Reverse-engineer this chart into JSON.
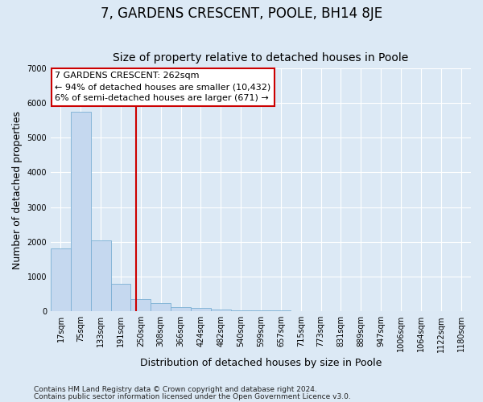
{
  "title": "7, GARDENS CRESCENT, POOLE, BH14 8JE",
  "subtitle": "Size of property relative to detached houses in Poole",
  "xlabel": "Distribution of detached houses by size in Poole",
  "ylabel": "Number of detached properties",
  "footnote1": "Contains HM Land Registry data © Crown copyright and database right 2024.",
  "footnote2": "Contains public sector information licensed under the Open Government Licence v3.0.",
  "property_label": "7 GARDENS CRESCENT: 262sqm",
  "annotation_line1": "← 94% of detached houses are smaller (10,432)",
  "annotation_line2": "6% of semi-detached houses are larger (671) →",
  "bin_labels": [
    "17sqm",
    "75sqm",
    "133sqm",
    "191sqm",
    "250sqm",
    "308sqm",
    "366sqm",
    "424sqm",
    "482sqm",
    "540sqm",
    "599sqm",
    "657sqm",
    "715sqm",
    "773sqm",
    "831sqm",
    "889sqm",
    "947sqm",
    "1006sqm",
    "1064sqm",
    "1122sqm",
    "1180sqm"
  ],
  "bar_values": [
    1800,
    5750,
    2050,
    800,
    350,
    230,
    130,
    100,
    50,
    30,
    20,
    20,
    0,
    0,
    0,
    0,
    0,
    0,
    0,
    0,
    0
  ],
  "bar_color": "#c5d8ef",
  "bar_edge_color": "#7aafd4",
  "vline_x": 3.75,
  "vline_color": "#cc0000",
  "ylim": [
    0,
    7000
  ],
  "yticks": [
    0,
    1000,
    2000,
    3000,
    4000,
    5000,
    6000,
    7000
  ],
  "bg_color": "#dce9f5",
  "plot_bg_color": "#dce9f5",
  "grid_color": "#ffffff",
  "title_fontsize": 12,
  "subtitle_fontsize": 10,
  "axis_label_fontsize": 9,
  "tick_fontsize": 7,
  "annotation_fontsize": 8,
  "footnote_fontsize": 6.5
}
